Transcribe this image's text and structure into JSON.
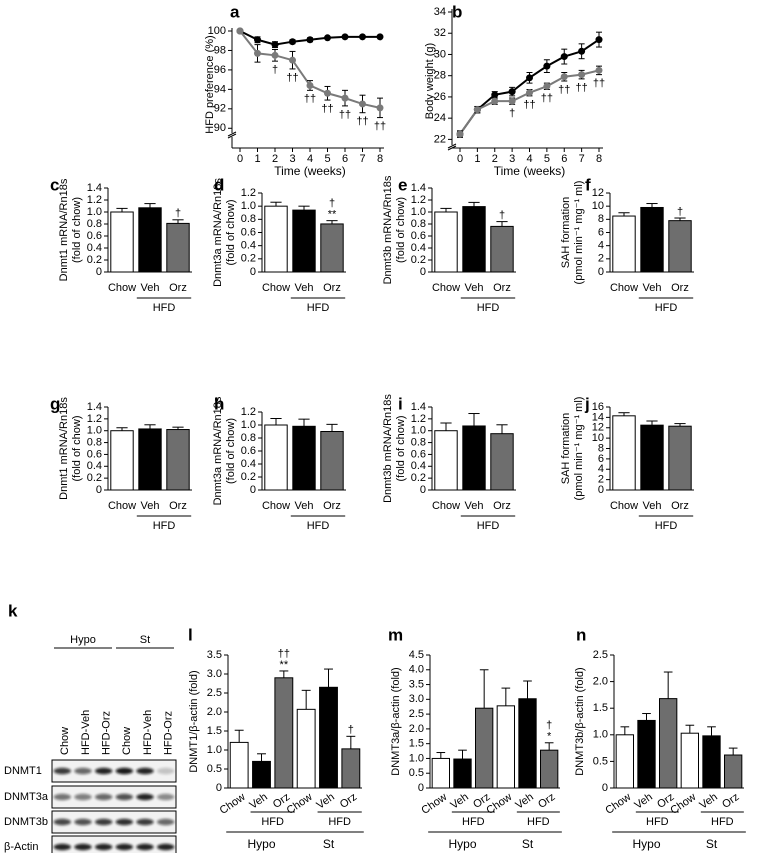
{
  "chart_data": [
    {
      "type": "line",
      "panel": "a",
      "ylabel": [
        "HFD preference (%)"
      ],
      "xlabel": "Time (weeks)",
      "x": [
        0,
        1,
        2,
        3,
        4,
        5,
        6,
        7,
        8
      ],
      "xlim": [
        0,
        8
      ],
      "xticks": [
        0,
        1,
        2,
        3,
        4,
        5,
        6,
        7,
        8
      ],
      "ylim": [
        89,
        100
      ],
      "yticks": [
        90,
        92,
        94,
        96,
        98,
        100
      ],
      "axis_break": true,
      "series": [
        {
          "color": "#000000",
          "values": [
            100,
            99.1,
            98.6,
            98.9,
            99.1,
            99.3,
            99.4,
            99.4,
            99.4
          ],
          "errors": [
            0,
            0.3,
            0.3,
            0.2,
            0.2,
            0.1,
            0.1,
            0.1,
            0.1
          ]
        },
        {
          "color": "#7a7a7a",
          "values": [
            100,
            97.7,
            97.5,
            97.0,
            94.4,
            93.6,
            93.1,
            92.5,
            92.1
          ],
          "errors": [
            0,
            0.9,
            0.6,
            0.9,
            0.5,
            0.7,
            0.8,
            0.9,
            1.0
          ],
          "value_annotations": [
            null,
            null,
            "†",
            "††",
            "††",
            "††",
            "††",
            "††",
            "††"
          ]
        }
      ]
    },
    {
      "type": "line",
      "panel": "b",
      "ylabel": [
        "Body weight (g)"
      ],
      "xlabel": "Time (weeks)",
      "x": [
        0,
        1,
        2,
        3,
        4,
        5,
        6,
        7,
        8
      ],
      "xlim": [
        0,
        8
      ],
      "xticks": [
        0,
        1,
        2,
        3,
        4,
        5,
        6,
        7,
        8
      ],
      "ylim": [
        21,
        34
      ],
      "yticks": [
        22,
        24,
        26,
        28,
        30,
        32,
        34
      ],
      "axis_break": true,
      "series": [
        {
          "color": "#000000",
          "values": [
            22.5,
            24.8,
            26.2,
            26.5,
            27.8,
            28.9,
            29.8,
            30.3,
            31.4
          ],
          "errors": [
            0.3,
            0.3,
            0.3,
            0.4,
            0.5,
            0.6,
            0.7,
            0.7,
            0.7
          ]
        },
        {
          "color": "#7a7a7a",
          "values": [
            22.5,
            24.8,
            25.6,
            25.6,
            26.4,
            27.0,
            27.9,
            28.1,
            28.5
          ],
          "errors": [
            0.3,
            0.3,
            0.3,
            0.3,
            0.3,
            0.3,
            0.4,
            0.4,
            0.4
          ],
          "value_annotations": [
            null,
            null,
            null,
            "†",
            "††",
            "††",
            "††",
            "††",
            "††"
          ]
        }
      ]
    },
    {
      "type": "bar",
      "panel": "c",
      "ylabel": [
        "Dnmt1 mRNA/Rn18s",
        "(fold of chow)"
      ],
      "categories": [
        "Chow",
        "Veh",
        "Orz"
      ],
      "group_labels": [
        "HFD"
      ],
      "values": [
        1.0,
        1.07,
        0.81
      ],
      "errors": [
        0.06,
        0.07,
        0.06
      ],
      "value_annotations": [
        null,
        null,
        [
          "†"
        ]
      ],
      "colors": [
        "#ffffff",
        "#000000",
        "#6e6e6e"
      ],
      "ylim": [
        0,
        1.4
      ],
      "yticks": [
        0,
        0.2,
        0.4,
        0.6,
        0.8,
        {
          "value": 1,
          "label": "1.0"
        },
        1.2,
        1.4
      ]
    },
    {
      "type": "bar",
      "panel": "d",
      "ylabel": [
        "Dnmt3a mRNA/Rn18s",
        "(fold of chow)"
      ],
      "categories": [
        "Chow",
        "Veh",
        "Orz"
      ],
      "group_labels": [
        "HFD"
      ],
      "values": [
        1.0,
        0.94,
        0.73
      ],
      "errors": [
        0.06,
        0.06,
        0.05
      ],
      "value_annotations": [
        null,
        null,
        [
          "†",
          "**"
        ]
      ],
      "colors": [
        "#ffffff",
        "#000000",
        "#6e6e6e"
      ],
      "ylim": [
        0,
        1.2
      ],
      "yticks": [
        0,
        0.2,
        0.4,
        0.6,
        0.8,
        {
          "value": 1,
          "label": "1.0"
        },
        1.2
      ]
    },
    {
      "type": "bar",
      "panel": "e",
      "ylabel": [
        "Dnmt3b mRNA/Rn18s",
        "(fold of chow)"
      ],
      "categories": [
        "Chow",
        "Veh",
        "Orz"
      ],
      "group_labels": [
        "HFD"
      ],
      "values": [
        1.0,
        1.09,
        0.76
      ],
      "errors": [
        0.06,
        0.07,
        0.08
      ],
      "value_annotations": [
        null,
        null,
        [
          "†"
        ]
      ],
      "colors": [
        "#ffffff",
        "#000000",
        "#6e6e6e"
      ],
      "ylim": [
        0,
        1.4
      ],
      "yticks": [
        0,
        0.2,
        0.4,
        0.6,
        0.8,
        {
          "value": 1,
          "label": "1.0"
        },
        1.2,
        1.4
      ]
    },
    {
      "type": "bar",
      "panel": "f",
      "ylabel": [
        "SAH formation",
        "(pmol min⁻¹ mg⁻¹ ml)"
      ],
      "categories": [
        "Chow",
        "Veh",
        "Orz"
      ],
      "group_labels": [
        "HFD"
      ],
      "values": [
        8.5,
        9.8,
        7.8
      ],
      "errors": [
        0.5,
        0.6,
        0.4
      ],
      "value_annotations": [
        null,
        null,
        [
          "†"
        ]
      ],
      "colors": [
        "#ffffff",
        "#000000",
        "#6e6e6e"
      ],
      "ylim": [
        0,
        12
      ],
      "yticks": [
        0,
        2,
        4,
        6,
        8,
        10,
        12
      ]
    },
    {
      "type": "bar",
      "panel": "g",
      "ylabel": [
        "Dnmt1 mRNA/Rn18s",
        "(fold of chow)"
      ],
      "categories": [
        "Chow",
        "Veh",
        "Orz"
      ],
      "group_labels": [
        "HFD"
      ],
      "values": [
        1.0,
        1.03,
        1.02
      ],
      "errors": [
        0.05,
        0.07,
        0.04
      ],
      "colors": [
        "#ffffff",
        "#000000",
        "#6e6e6e"
      ],
      "ylim": [
        0,
        1.4
      ],
      "yticks": [
        0,
        0.2,
        0.4,
        0.6,
        0.8,
        {
          "value": 1,
          "label": "1.0"
        },
        1.2,
        1.4
      ]
    },
    {
      "type": "bar",
      "panel": "h",
      "ylabel": [
        "Dnmt3a mRNA/Rn18s",
        "(fold of chow)"
      ],
      "categories": [
        "Chow",
        "Veh",
        "Orz"
      ],
      "group_labels": [
        "HFD"
      ],
      "values": [
        1.0,
        0.98,
        0.9
      ],
      "errors": [
        0.1,
        0.11,
        0.11
      ],
      "colors": [
        "#ffffff",
        "#000000",
        "#6e6e6e"
      ],
      "ylim": [
        0,
        1.2
      ],
      "yticks": [
        0,
        0.2,
        0.4,
        0.6,
        0.8,
        {
          "value": 1,
          "label": "1.0"
        },
        1.2
      ]
    },
    {
      "type": "bar",
      "panel": "i",
      "ylabel": [
        "Dnmt3b mRNA/Rn18s",
        "(fold of chow)"
      ],
      "categories": [
        "Chow",
        "Veh",
        "Orz"
      ],
      "group_labels": [
        "HFD"
      ],
      "values": [
        1.0,
        1.08,
        0.95
      ],
      "errors": [
        0.13,
        0.21,
        0.15
      ],
      "colors": [
        "#ffffff",
        "#000000",
        "#6e6e6e"
      ],
      "ylim": [
        0,
        1.4
      ],
      "yticks": [
        0,
        0.2,
        0.4,
        0.6,
        0.8,
        {
          "value": 1,
          "label": "1.0"
        },
        1.2,
        1.4
      ]
    },
    {
      "type": "bar",
      "panel": "j",
      "ylabel": [
        "SAH formation",
        "(pmol min⁻¹ mg⁻¹ ml)"
      ],
      "categories": [
        "Chow",
        "Veh",
        "Orz"
      ],
      "group_labels": [
        "HFD"
      ],
      "values": [
        14.3,
        12.5,
        12.3
      ],
      "errors": [
        0.6,
        0.8,
        0.5
      ],
      "colors": [
        "#ffffff",
        "#000000",
        "#6e6e6e"
      ],
      "ylim": [
        0,
        16
      ],
      "yticks": [
        0,
        2,
        4,
        6,
        8,
        10,
        12,
        14,
        16
      ]
    },
    {
      "type": "bar",
      "panel": "l",
      "ylabel": [
        "DNMT1/β-actin (fold)"
      ],
      "categories": [
        "Chow",
        "Veh",
        "Orz",
        "Chow",
        "Veh",
        "Orz"
      ],
      "group_labels": [
        "HFD",
        "HFD"
      ],
      "outer_labels": [
        "Hypo",
        "St"
      ],
      "values": [
        1.2,
        0.7,
        2.9,
        2.07,
        2.65,
        1.03
      ],
      "errors": [
        0.32,
        0.2,
        0.18,
        0.5,
        0.48,
        0.33
      ],
      "value_annotations": [
        null,
        null,
        [
          "††",
          "**"
        ],
        null,
        null,
        [
          "†"
        ]
      ],
      "colors": [
        "#ffffff",
        "#000000",
        "#6e6e6e",
        "#ffffff",
        "#000000",
        "#6e6e6e"
      ],
      "ylim": [
        0,
        3.5
      ],
      "yticks": [
        0,
        0.5,
        {
          "value": 1,
          "label": "1.0"
        },
        1.5,
        {
          "value": 2,
          "label": "2.0"
        },
        2.5,
        {
          "value": 3,
          "label": "3.0"
        },
        3.5
      ]
    },
    {
      "type": "bar",
      "panel": "m",
      "ylabel": [
        "DNMT3a/β-actin (fold)"
      ],
      "categories": [
        "Chow",
        "Veh",
        "Orz",
        "Chow",
        "Veh",
        "Orz"
      ],
      "group_labels": [
        "HFD",
        "HFD"
      ],
      "outer_labels": [
        "Hypo",
        "St"
      ],
      "values": [
        1.0,
        0.98,
        2.7,
        2.78,
        3.02,
        1.28
      ],
      "errors": [
        0.2,
        0.3,
        1.3,
        0.6,
        0.6,
        0.25
      ],
      "value_annotations": [
        null,
        null,
        null,
        null,
        null,
        [
          "†",
          "*"
        ]
      ],
      "colors": [
        "#ffffff",
        "#000000",
        "#6e6e6e",
        "#ffffff",
        "#000000",
        "#6e6e6e"
      ],
      "ylim": [
        0,
        4.5
      ],
      "yticks": [
        0,
        0.5,
        {
          "value": 1,
          "label": "1.0"
        },
        1.5,
        {
          "value": 2,
          "label": "2.0"
        },
        2.5,
        {
          "value": 3,
          "label": "3.0"
        },
        3.5,
        {
          "value": 4,
          "label": "4.0"
        },
        4.5
      ]
    },
    {
      "type": "bar",
      "panel": "n",
      "ylabel": [
        "DNMT3b/β-actin (fold)"
      ],
      "categories": [
        "Chow",
        "Veh",
        "Orz",
        "Chow",
        "Veh",
        "Orz"
      ],
      "group_labels": [
        "HFD",
        "HFD"
      ],
      "outer_labels": [
        "Hypo",
        "St"
      ],
      "values": [
        1.0,
        1.27,
        1.68,
        1.03,
        0.98,
        0.62
      ],
      "errors": [
        0.15,
        0.13,
        0.5,
        0.15,
        0.17,
        0.13
      ],
      "colors": [
        "#ffffff",
        "#000000",
        "#6e6e6e",
        "#ffffff",
        "#000000",
        "#6e6e6e"
      ],
      "ylim": [
        0,
        2.5
      ],
      "yticks": [
        0,
        0.5,
        {
          "value": 1,
          "label": "1.0"
        },
        1.5,
        {
          "value": 2,
          "label": "2.0"
        },
        2.5
      ]
    }
  ],
  "blot": {
    "panel": "k",
    "groups": [
      "Hypo",
      "St"
    ],
    "lanes": [
      "Chow",
      "HFD-Veh",
      "HFD-Orz",
      "Chow",
      "HFD-Veh",
      "HFD-Orz"
    ],
    "rows": [
      "DNMT1",
      "DNMT3a",
      "DNMT3b",
      "β-Actin"
    ]
  }
}
